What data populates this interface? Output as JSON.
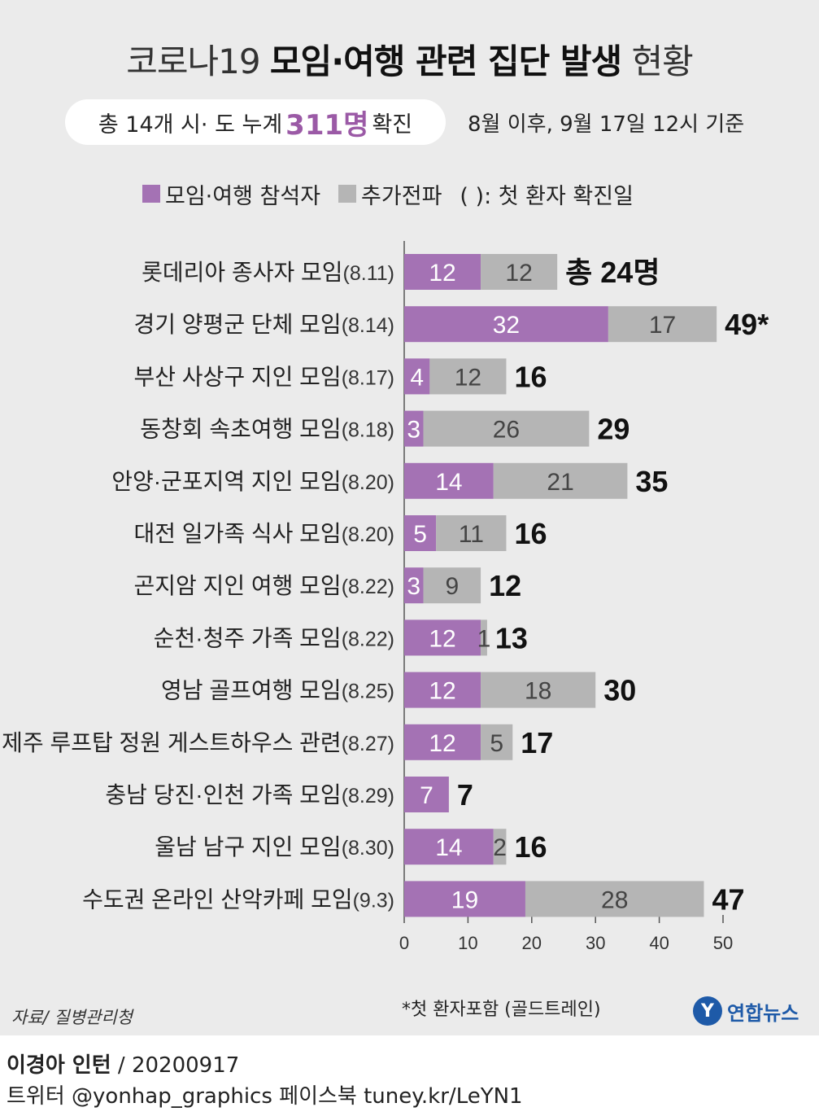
{
  "title": {
    "prefix": "코로나19",
    "main": "모임·여행 관련 집단 발생",
    "suffix": "현황"
  },
  "summary": {
    "before": "총 14개 시· 도 누계",
    "count": "311명",
    "after": "확진"
  },
  "as_of": "8월 이후, 9월 17일 12시 기준",
  "legend": {
    "participants": "모임·여행 참석자",
    "spread": "추가전파",
    "note": "( ): 첫 환자 확진일"
  },
  "colors": {
    "participants": "#a472b4",
    "spread": "#b5b5b5",
    "background": "#ebebeb"
  },
  "chart_data": {
    "type": "bar",
    "orientation": "horizontal",
    "stacked": true,
    "xlim": [
      0,
      50
    ],
    "xticks": [
      0,
      10,
      20,
      30,
      40,
      50
    ],
    "categories": [
      {
        "name": "롯데리아 종사자 모임",
        "date": "(8.11)"
      },
      {
        "name": "경기 양평군 단체 모임",
        "date": "(8.14)"
      },
      {
        "name": "부산 사상구 지인 모임",
        "date": "(8.17)"
      },
      {
        "name": "동창회 속초여행 모임",
        "date": "(8.18)"
      },
      {
        "name": "안양·군포지역 지인 모임",
        "date": "(8.20)"
      },
      {
        "name": "대전 일가족 식사 모임",
        "date": "(8.20)"
      },
      {
        "name": "곤지암 지인 여행 모임",
        "date": "(8.22)"
      },
      {
        "name": "순천·청주 가족 모임",
        "date": "(8.22)"
      },
      {
        "name": "영남 골프여행 모임",
        "date": "(8.25)"
      },
      {
        "name": "제주 루프탑 정원 게스트하우스 관련",
        "date": "(8.27)"
      },
      {
        "name": "충남 당진·인천 가족 모임",
        "date": "(8.29)"
      },
      {
        "name": "울남 남구 지인 모임",
        "date": "(8.30)"
      },
      {
        "name": "수도권 온라인 산악카페 모임",
        "date": "(9.3)"
      }
    ],
    "series": [
      {
        "name": "모임·여행 참석자",
        "values": [
          12,
          32,
          4,
          3,
          14,
          5,
          3,
          12,
          12,
          12,
          7,
          14,
          19
        ]
      },
      {
        "name": "추가전파",
        "values": [
          12,
          17,
          12,
          26,
          21,
          11,
          9,
          1,
          18,
          5,
          0,
          2,
          28
        ]
      }
    ],
    "totals": [
      "총 24명",
      "49*",
      "16",
      "29",
      "35",
      "16",
      "12",
      "13",
      "30",
      "17",
      "7",
      "16",
      "47"
    ]
  },
  "footnote": "*첫 환자포함 (골드트레인)",
  "source": "자료/ 질병관리청",
  "logo": "연합뉴스",
  "author": {
    "name": "이경아 인턴",
    "date": "/ 20200917"
  },
  "social": "트위터 @yonhap_graphics 페이스북 tuney.kr/LeYN1"
}
